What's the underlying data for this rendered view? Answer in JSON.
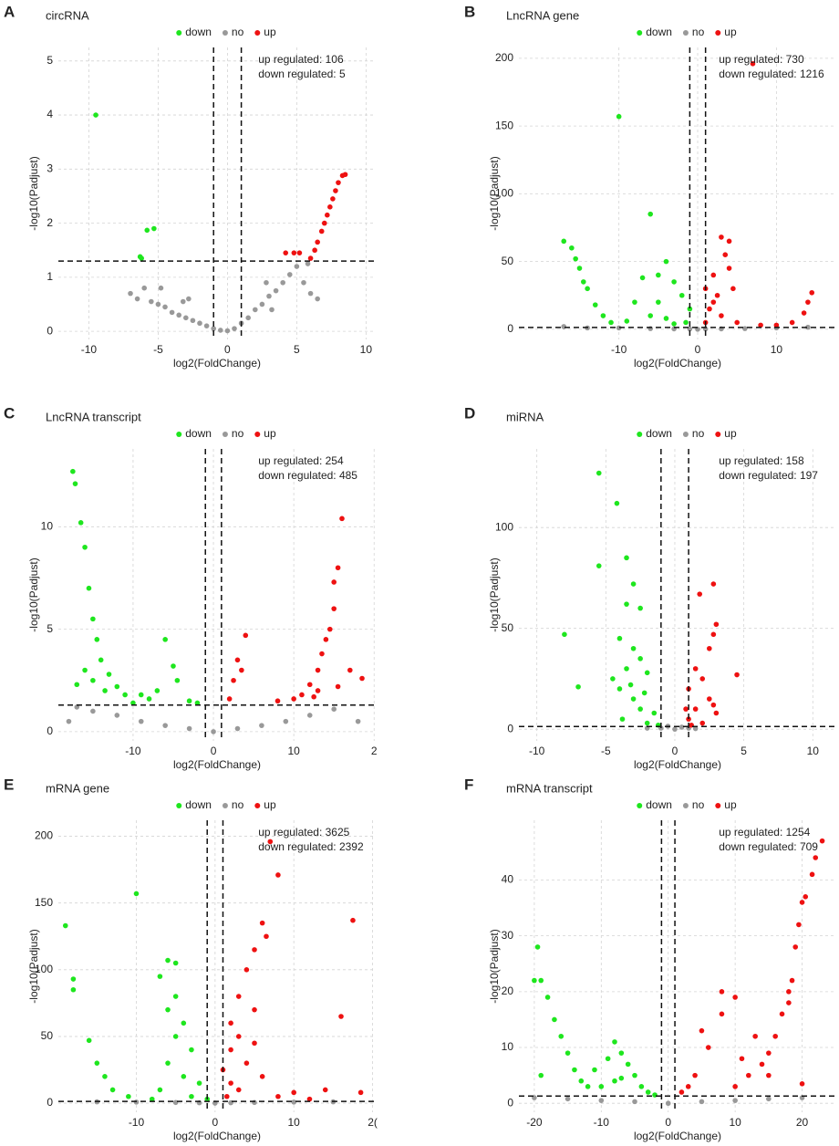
{
  "chart_data": [
    {
      "type": "scatter",
      "panel": "A",
      "title": "circRNA",
      "x_label": "log2(FoldChange)",
      "y_label": "-log10(Padjust)",
      "annotations": [
        "up regulated: 106",
        "down regulated: 5"
      ],
      "legend_position": "top",
      "grid": true,
      "xlim": [
        -12.2,
        10.7
      ],
      "ylim": [
        -0.15,
        5.25
      ],
      "xticks": [
        -10,
        -5,
        0,
        5,
        10
      ],
      "yticks": [
        0,
        1,
        2,
        3,
        4,
        5
      ],
      "vlines": [
        -1,
        1
      ],
      "hline": 1.3,
      "series": [
        {
          "name": "down",
          "color": "#1ee61e",
          "x": [
            -9.5,
            -5.3,
            -5.8,
            -6.2,
            -6.3
          ],
          "values": [
            4.0,
            1.9,
            1.87,
            1.35,
            1.38
          ]
        },
        {
          "name": "no",
          "color": "#999999",
          "x": [
            -7,
            -6.5,
            -6,
            -5.5,
            -5,
            -4.5,
            -4,
            -3.5,
            -3,
            -2.5,
            -2,
            -1.5,
            -1,
            -0.5,
            0,
            0.5,
            1,
            1.5,
            2,
            2.5,
            3,
            3.5,
            4,
            4.5,
            5,
            5.5,
            6,
            6.5,
            -4.8,
            -3.2,
            3.2,
            5.8,
            -2.8,
            2.8
          ],
          "values": [
            0.7,
            0.6,
            0.8,
            0.55,
            0.5,
            0.45,
            0.35,
            0.3,
            0.25,
            0.2,
            0.15,
            0.1,
            0.05,
            0.02,
            0.01,
            0.05,
            0.15,
            0.25,
            0.4,
            0.5,
            0.65,
            0.75,
            0.9,
            1.05,
            1.2,
            0.9,
            0.7,
            0.6,
            0.8,
            0.55,
            0.4,
            1.25,
            0.6,
            0.9
          ]
        },
        {
          "name": "up",
          "color": "#ee1111",
          "x": [
            4.2,
            4.8,
            5.2,
            6,
            6.3,
            6.5,
            6.8,
            7,
            7.2,
            7.4,
            7.6,
            7.8,
            8,
            8.3,
            8.5
          ],
          "values": [
            1.45,
            1.45,
            1.45,
            1.35,
            1.5,
            1.65,
            1.85,
            2.0,
            2.15,
            2.3,
            2.45,
            2.6,
            2.75,
            2.88,
            2.9
          ]
        }
      ]
    },
    {
      "type": "scatter",
      "panel": "B",
      "title": "LncRNA gene",
      "x_label": "log2(FoldChange)",
      "y_label": "-log10(Padjust)",
      "annotations": [
        "up regulated: 730",
        "down regulated: 1216"
      ],
      "legend_position": "top",
      "grid": true,
      "xlim": [
        -22.7,
        17.6
      ],
      "ylim": [
        -7.5,
        208
      ],
      "xticks": [
        -10,
        0,
        10
      ],
      "yticks": [
        0,
        50,
        100,
        150,
        200
      ],
      "vlines": [
        -1,
        1
      ],
      "hline": 1.3,
      "series": [
        {
          "name": "down",
          "color": "#1ee61e",
          "x": [
            -17,
            -16,
            -15,
            -14,
            -13,
            -12,
            -11,
            -10,
            -6,
            -4,
            -5,
            -7,
            -3,
            -8,
            -2,
            -1,
            -6,
            -4,
            -9,
            -15.5,
            -14.5,
            -3,
            -1.5,
            -5
          ],
          "values": [
            65,
            60,
            45,
            30,
            18,
            10,
            5,
            157,
            85,
            50,
            40,
            38,
            35,
            20,
            25,
            15,
            10,
            8,
            6,
            52,
            35,
            4,
            5,
            20
          ]
        },
        {
          "name": "no",
          "color": "#999999",
          "x": [
            -17,
            -14,
            -10,
            -6,
            -3,
            0,
            3,
            6,
            10,
            14,
            -1,
            1
          ],
          "values": [
            2,
            1,
            1,
            0.5,
            0.3,
            0,
            0.3,
            0.5,
            1,
            1.5,
            0.2,
            0.2
          ]
        },
        {
          "name": "up",
          "color": "#ee1111",
          "x": [
            7,
            3,
            4,
            3.5,
            2,
            1,
            4,
            2.5,
            1.5,
            3,
            5,
            8,
            12,
            13.5,
            14.5,
            14,
            10,
            1,
            2,
            4.5
          ],
          "values": [
            196,
            68,
            65,
            55,
            40,
            30,
            45,
            25,
            15,
            10,
            5,
            3,
            5,
            12,
            27,
            20,
            3,
            5,
            20,
            30
          ]
        }
      ]
    },
    {
      "type": "scatter",
      "panel": "C",
      "title": "LncRNA transcript",
      "x_label": "log2(FoldChange)",
      "y_label": "-log10(Padjust)",
      "annotations": [
        "up regulated: 254",
        "down regulated: 485"
      ],
      "legend_position": "top",
      "grid": true,
      "xlim": [
        -19.3,
        20.2
      ],
      "ylim": [
        -0.45,
        13.8
      ],
      "xticks": [
        -10,
        0,
        10,
        {
          "value": 20,
          "label": "2"
        }
      ],
      "yticks": [
        0,
        5,
        10
      ],
      "vlines": [
        -1,
        1
      ],
      "hline": 1.3,
      "series": [
        {
          "name": "down",
          "color": "#1ee61e",
          "x": [
            -17.5,
            -17.2,
            -16.5,
            -16,
            -15.5,
            -15,
            -14.5,
            -14,
            -13,
            -12,
            -11,
            -9,
            -7,
            -6,
            -5,
            -4.5,
            -3,
            -17,
            -16,
            -15,
            -13.5,
            -8,
            -10,
            -2
          ],
          "values": [
            12.7,
            12.1,
            10.2,
            9,
            7,
            5.5,
            4.5,
            3.5,
            2.8,
            2.2,
            1.8,
            1.8,
            2.0,
            4.5,
            3.2,
            2.5,
            1.5,
            2.3,
            3.0,
            2.5,
            2.0,
            1.6,
            1.4,
            1.4
          ]
        },
        {
          "name": "no",
          "color": "#999999",
          "x": [
            -17,
            -15,
            -12,
            -9,
            -6,
            -3,
            0,
            3,
            6,
            9,
            12,
            15,
            -18,
            18
          ],
          "values": [
            1.2,
            1,
            0.8,
            0.5,
            0.3,
            0.15,
            0,
            0.15,
            0.3,
            0.5,
            0.8,
            1.1,
            0.5,
            0.5
          ]
        },
        {
          "name": "up",
          "color": "#ee1111",
          "x": [
            4,
            3,
            3.5,
            2.5,
            2,
            8,
            10,
            11,
            12,
            13,
            13.5,
            14,
            15,
            15.5,
            16,
            15,
            14.5,
            17,
            18.5,
            13,
            15.5,
            12.5
          ],
          "values": [
            4.7,
            3.5,
            3.0,
            2.5,
            1.6,
            1.5,
            1.6,
            1.8,
            2.3,
            3.0,
            3.8,
            4.5,
            6,
            8,
            10.4,
            7.3,
            5,
            3,
            2.6,
            2.0,
            2.2,
            1.7
          ]
        }
      ]
    },
    {
      "type": "scatter",
      "panel": "D",
      "title": "miRNA",
      "x_label": "log2(FoldChange)",
      "y_label": "-log10(Padjust)",
      "annotations": [
        "up regulated: 158",
        "down regulated: 197"
      ],
      "legend_position": "top",
      "grid": true,
      "xlim": [
        -11.3,
        11.7
      ],
      "ylim": [
        -5.8,
        139
      ],
      "xticks": [
        -10,
        -5,
        0,
        5,
        10
      ],
      "yticks": [
        0,
        50,
        100
      ],
      "vlines": [
        -1,
        1
      ],
      "hline": 1.3,
      "series": [
        {
          "name": "down",
          "color": "#1ee61e",
          "x": [
            -5.5,
            -4.2,
            -3.5,
            -5.5,
            -3,
            -8,
            -7,
            -3.5,
            -2.5,
            -4,
            -3,
            -2.5,
            -3.5,
            -2,
            -4,
            -3,
            -2.5,
            -1.5,
            -3.8,
            -2,
            -1.2,
            -4.5,
            -3.2,
            -2.2
          ],
          "values": [
            127,
            112,
            85,
            81,
            72,
            47,
            21,
            62,
            60,
            45,
            40,
            35,
            30,
            28,
            20,
            15,
            10,
            8,
            5,
            3,
            2,
            25,
            22,
            18
          ]
        },
        {
          "name": "no",
          "color": "#999999",
          "x": [
            -2,
            -1,
            0,
            0.5,
            1,
            -0.5,
            1.5
          ],
          "values": [
            0.5,
            0.5,
            0,
            1,
            0.5,
            1.5,
            0.3
          ]
        },
        {
          "name": "up",
          "color": "#ee1111",
          "x": [
            2.8,
            1.8,
            3,
            2.8,
            4.5,
            2.5,
            1.5,
            2,
            1,
            2.5,
            1.5,
            3,
            1,
            2,
            2.8,
            1.2,
            0.8
          ],
          "values": [
            72,
            67,
            52,
            47,
            27,
            40,
            30,
            25,
            20,
            15,
            10,
            8,
            5,
            3,
            12,
            2,
            10
          ]
        }
      ]
    },
    {
      "type": "scatter",
      "panel": "E",
      "title": "mRNA gene",
      "x_label": "log2(FoldChange)",
      "y_label": "-log10(Padjust)",
      "annotations": [
        "up regulated: 3625",
        "down regulated: 2392"
      ],
      "legend_position": "top",
      "grid": true,
      "xlim": [
        -19.9,
        20.4
      ],
      "ylim": [
        -6.8,
        212
      ],
      "xticks": [
        -10,
        0,
        10,
        {
          "value": 20,
          "label": "2("
        }
      ],
      "yticks": [
        0,
        50,
        100,
        150,
        200
      ],
      "vlines": [
        -1,
        1
      ],
      "hline": 1.3,
      "series": [
        {
          "name": "down",
          "color": "#1ee61e",
          "x": [
            -19,
            -18,
            -18,
            -16,
            -15,
            -14,
            -13,
            -11,
            -10,
            -6,
            -5,
            -7,
            -5,
            -6,
            -4,
            -5,
            -3,
            -6,
            -4,
            -2,
            -7,
            -3,
            -8,
            -1
          ],
          "values": [
            133,
            93,
            85,
            47,
            30,
            20,
            10,
            5,
            157,
            107,
            105,
            95,
            80,
            70,
            60,
            50,
            40,
            30,
            20,
            15,
            10,
            5,
            3,
            3
          ]
        },
        {
          "name": "no",
          "color": "#999999",
          "x": [
            -15,
            -10,
            -5,
            0,
            5,
            10,
            15,
            -2,
            2
          ],
          "values": [
            1,
            0.8,
            0.5,
            0,
            0.5,
            0.8,
            1,
            0.3,
            0.3
          ]
        },
        {
          "name": "up",
          "color": "#ee1111",
          "x": [
            7,
            8,
            6,
            6.5,
            5,
            4,
            3,
            2,
            5,
            3,
            2,
            4,
            1,
            6,
            3,
            8,
            10,
            14,
            16,
            17.5,
            18.5,
            2,
            5,
            1.5,
            12
          ],
          "values": [
            196,
            171,
            135,
            125,
            115,
            100,
            80,
            60,
            70,
            50,
            40,
            30,
            25,
            20,
            10,
            5,
            8,
            10,
            65,
            137,
            8,
            15,
            45,
            5,
            3
          ]
        }
      ]
    },
    {
      "type": "scatter",
      "panel": "F",
      "title": "mRNA transcript",
      "x_label": "log2(FoldChange)",
      "y_label": "-log10(Padjust)",
      "annotations": [
        "up regulated: 1254",
        "down regulated: 709"
      ],
      "legend_position": "top",
      "grid": true,
      "xlim": [
        -22.3,
        25.1
      ],
      "ylim": [
        -1.6,
        50.7
      ],
      "xticks": [
        -20,
        -10,
        0,
        10,
        20
      ],
      "yticks": [
        0,
        10,
        20,
        30,
        40
      ],
      "vlines": [
        -1,
        1
      ],
      "hline": 1.3,
      "series": [
        {
          "name": "down",
          "color": "#1ee61e",
          "x": [
            -19.5,
            -20,
            -19,
            -18,
            -17,
            -16,
            -15,
            -14,
            -13,
            -12,
            -10,
            -8,
            -7,
            -9,
            -6,
            -5,
            -4,
            -3,
            -8,
            -2,
            -19,
            -11,
            -7
          ],
          "values": [
            28,
            22,
            22,
            19,
            15,
            12,
            9,
            6,
            4,
            3,
            3,
            11,
            9,
            8,
            7,
            5,
            3,
            2,
            4,
            1.5,
            5,
            6,
            4.5
          ]
        },
        {
          "name": "no",
          "color": "#999999",
          "x": [
            -20,
            -15,
            -10,
            -5,
            0,
            5,
            10,
            15,
            20
          ],
          "values": [
            1,
            0.8,
            0.5,
            0.3,
            0,
            0.3,
            0.5,
            0.8,
            1
          ]
        },
        {
          "name": "up",
          "color": "#ee1111",
          "x": [
            23,
            22,
            21.5,
            20.5,
            20,
            19.5,
            19,
            18.5,
            18,
            17,
            16,
            15,
            14,
            12,
            10,
            8,
            10,
            8,
            5,
            6,
            4,
            3,
            2,
            13,
            15,
            20,
            18,
            11
          ],
          "values": [
            47,
            44,
            41,
            37,
            36,
            32,
            28,
            22,
            20,
            16,
            12,
            9,
            7,
            5,
            3,
            20,
            19,
            16,
            13,
            10,
            5,
            3,
            2,
            12,
            5,
            3.5,
            18,
            8
          ]
        }
      ]
    }
  ]
}
